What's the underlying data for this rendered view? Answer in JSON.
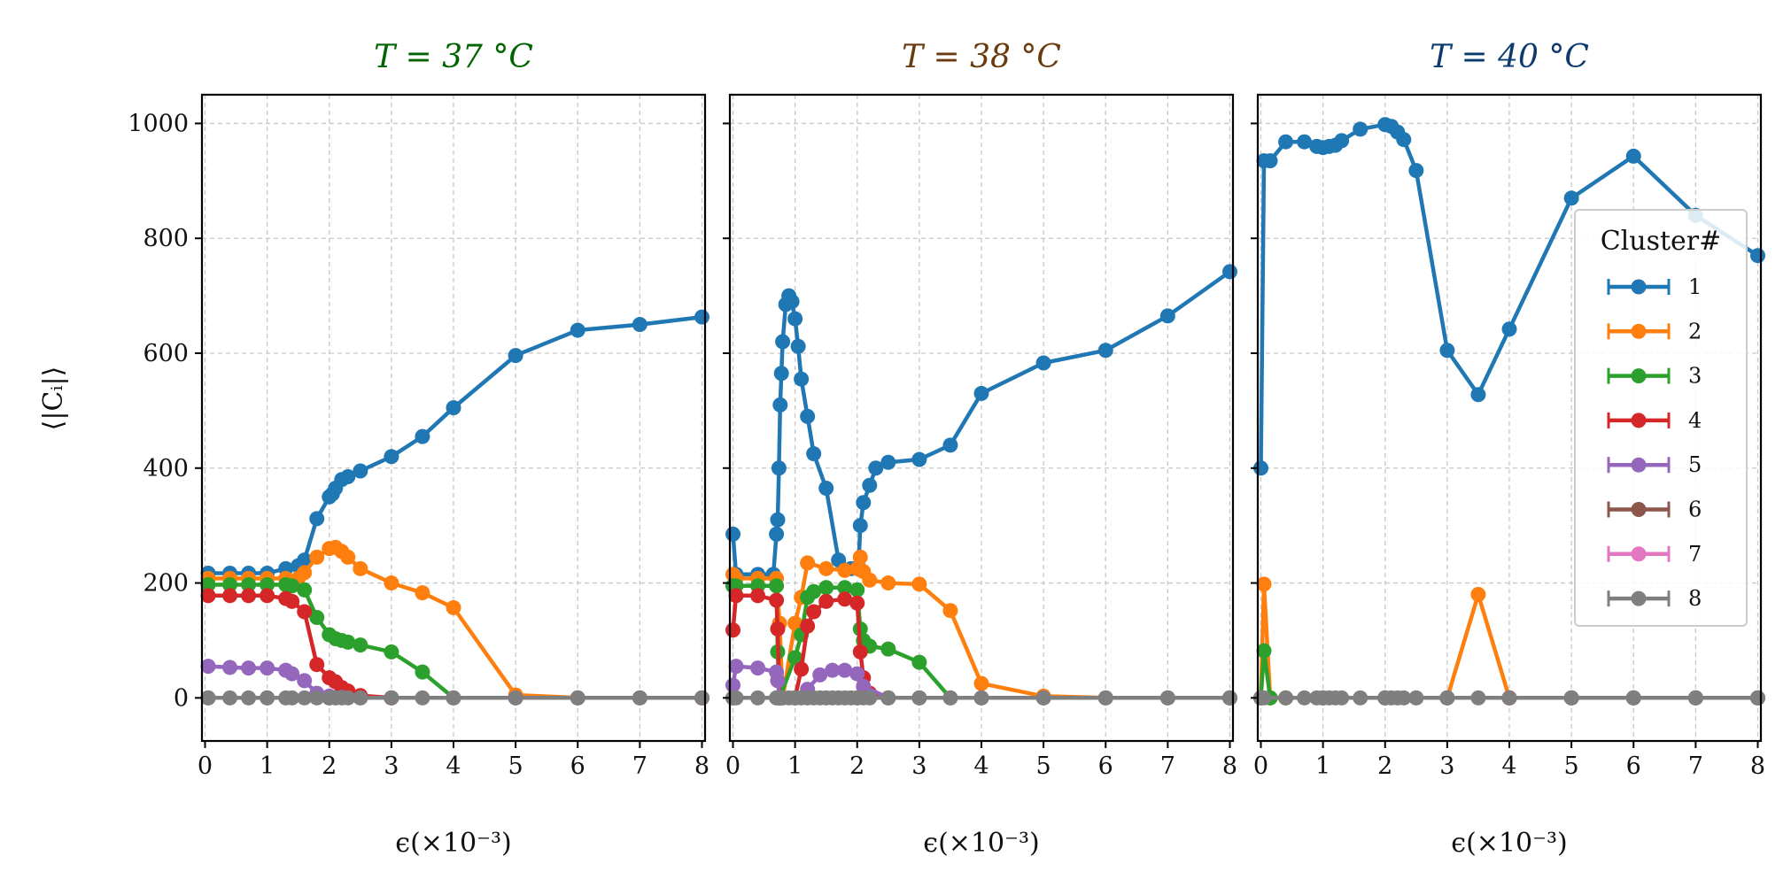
{
  "figure": {
    "ylabel": "⟨|Cᵢ|⟩",
    "xlabel": "ϵ(×10⁻³)"
  },
  "legend": {
    "title": "Cluster#",
    "entries": [
      "1",
      "2",
      "3",
      "4",
      "5",
      "6",
      "7",
      "8"
    ]
  },
  "colors": {
    "1": "#1f77b4",
    "2": "#ff7f0e",
    "3": "#2ca02c",
    "4": "#d62728",
    "5": "#9467bd",
    "6": "#8c564b",
    "7": "#e377c2",
    "8": "#7f7f7f"
  },
  "chart_data": [
    {
      "type": "line",
      "title": "T = 37 °C",
      "title_color": "#006400",
      "xlabel": "ϵ(×10⁻³)",
      "ylabel": "⟨|Cᵢ|⟩",
      "xlim": [
        -0.05,
        8.05
      ],
      "ylim": [
        -75,
        1050
      ],
      "xticks": [
        0,
        1,
        2,
        3,
        4,
        5,
        6,
        7,
        8
      ],
      "yticks": [
        0,
        200,
        400,
        600,
        800,
        1000
      ],
      "grid": true,
      "series": [
        {
          "name": "1",
          "x": [
            0.05,
            0.4,
            0.7,
            1.0,
            1.3,
            1.5,
            1.6,
            1.8,
            2.0,
            2.05,
            2.1,
            2.2,
            2.3,
            2.5,
            3.0,
            3.5,
            4.0,
            5.0,
            6.0,
            7.0,
            8.0
          ],
          "y": [
            217,
            217,
            217,
            217,
            225,
            230,
            240,
            312,
            350,
            355,
            365,
            380,
            385,
            395,
            420,
            455,
            505,
            596,
            640,
            650,
            663
          ]
        },
        {
          "name": "2",
          "x": [
            0.05,
            0.4,
            0.7,
            1.0,
            1.3,
            1.5,
            1.6,
            1.8,
            2.0,
            2.1,
            2.2,
            2.3,
            2.5,
            3.0,
            3.5,
            4.0,
            5.0,
            6.0,
            8.0
          ],
          "y": [
            208,
            208,
            208,
            208,
            208,
            208,
            218,
            245,
            260,
            262,
            255,
            245,
            225,
            200,
            183,
            157,
            5,
            0,
            0
          ]
        },
        {
          "name": "3",
          "x": [
            0.05,
            0.4,
            0.7,
            1.0,
            1.3,
            1.4,
            1.6,
            1.8,
            2.0,
            2.1,
            2.2,
            2.3,
            2.5,
            3.0,
            3.5,
            4.0,
            8.0
          ],
          "y": [
            197,
            197,
            197,
            197,
            197,
            195,
            188,
            140,
            110,
            103,
            100,
            97,
            92,
            80,
            45,
            0,
            0
          ]
        },
        {
          "name": "4",
          "x": [
            0.05,
            0.4,
            0.7,
            1.0,
            1.3,
            1.4,
            1.6,
            1.8,
            2.0,
            2.1,
            2.2,
            2.3,
            2.5,
            3.0,
            8.0
          ],
          "y": [
            178,
            178,
            178,
            178,
            173,
            168,
            150,
            58,
            35,
            28,
            18,
            12,
            4,
            0,
            0
          ]
        },
        {
          "name": "5",
          "x": [
            0.05,
            0.4,
            0.7,
            1.0,
            1.3,
            1.4,
            1.6,
            1.8,
            2.0,
            2.2,
            2.5,
            3.0,
            8.0
          ],
          "y": [
            55,
            53,
            52,
            52,
            48,
            42,
            30,
            8,
            3,
            1,
            0,
            0,
            0
          ]
        },
        {
          "name": "6",
          "x": [
            0.05,
            1.0,
            2.0,
            3.0,
            4.0,
            5.0,
            6.0,
            7.0,
            8.0
          ],
          "y": [
            0,
            0,
            0,
            0,
            0,
            0,
            0,
            0,
            0
          ]
        },
        {
          "name": "7",
          "x": [
            0.05,
            1.0,
            2.0,
            3.0,
            4.0,
            5.0,
            6.0,
            7.0,
            8.0
          ],
          "y": [
            0,
            0,
            0,
            0,
            0,
            0,
            0,
            0,
            0
          ]
        },
        {
          "name": "8",
          "x": [
            0.05,
            0.4,
            0.7,
            1.0,
            1.3,
            1.4,
            1.6,
            1.8,
            2.0,
            2.1,
            2.2,
            2.3,
            2.5,
            3.0,
            3.5,
            4.0,
            5.0,
            6.0,
            7.0,
            8.0
          ],
          "y": [
            0,
            0,
            0,
            0,
            0,
            0,
            0,
            0,
            0,
            0,
            0,
            0,
            0,
            0,
            0,
            0,
            0,
            0,
            0,
            0
          ]
        }
      ]
    },
    {
      "type": "line",
      "title": "T = 38 °C",
      "title_color": "#6b3a0c",
      "xlabel": "ϵ(×10⁻³)",
      "xlim": [
        -0.05,
        8.05
      ],
      "ylim": [
        -75,
        1050
      ],
      "xticks": [
        0,
        1,
        2,
        3,
        4,
        5,
        6,
        7,
        8
      ],
      "yticks": [
        0,
        200,
        400,
        600,
        800,
        1000
      ],
      "grid": true,
      "series": [
        {
          "name": "1",
          "x": [
            0.0,
            0.05,
            0.4,
            0.65,
            0.7,
            0.72,
            0.74,
            0.76,
            0.78,
            0.8,
            0.85,
            0.9,
            0.95,
            1.0,
            1.05,
            1.1,
            1.2,
            1.3,
            1.5,
            1.7,
            1.9,
            2.0,
            2.02,
            2.05,
            2.1,
            2.2,
            2.3,
            2.5,
            3.0,
            3.5,
            4.0,
            5.0,
            6.0,
            7.0,
            8.0
          ],
          "y": [
            285,
            215,
            215,
            215,
            285,
            310,
            400,
            510,
            565,
            620,
            685,
            700,
            690,
            660,
            612,
            555,
            490,
            425,
            365,
            240,
            225,
            225,
            228,
            300,
            340,
            370,
            400,
            410,
            415,
            440,
            530,
            583,
            605,
            665,
            742
          ]
        },
        {
          "name": "2",
          "x": [
            0.0,
            0.05,
            0.4,
            0.7,
            0.75,
            0.8,
            1.0,
            1.1,
            1.2,
            1.5,
            1.8,
            2.0,
            2.05,
            2.1,
            2.2,
            2.5,
            3.0,
            3.5,
            4.0,
            5.0,
            6.0,
            8.0
          ],
          "y": [
            215,
            208,
            208,
            208,
            130,
            0,
            130,
            175,
            235,
            225,
            222,
            225,
            245,
            220,
            205,
            200,
            198,
            152,
            25,
            3,
            0,
            0
          ]
        },
        {
          "name": "3",
          "x": [
            0.0,
            0.05,
            0.4,
            0.7,
            0.72,
            0.75,
            1.0,
            1.1,
            1.2,
            1.3,
            1.5,
            1.8,
            2.0,
            2.05,
            2.1,
            2.2,
            2.5,
            3.0,
            3.5,
            8.0
          ],
          "y": [
            195,
            195,
            195,
            195,
            80,
            0,
            70,
            110,
            175,
            185,
            192,
            192,
            188,
            120,
            100,
            90,
            85,
            62,
            0,
            0
          ]
        },
        {
          "name": "4",
          "x": [
            0.0,
            0.05,
            0.4,
            0.7,
            0.72,
            0.75,
            1.0,
            1.1,
            1.2,
            1.3,
            1.5,
            1.8,
            2.0,
            2.05,
            2.1,
            2.2,
            2.5,
            8.0
          ],
          "y": [
            118,
            178,
            178,
            170,
            120,
            0,
            0,
            50,
            125,
            150,
            168,
            172,
            165,
            80,
            35,
            8,
            0,
            0
          ]
        },
        {
          "name": "5",
          "x": [
            0.0,
            0.05,
            0.4,
            0.7,
            0.72,
            0.75,
            1.0,
            1.2,
            1.4,
            1.6,
            1.8,
            2.0,
            2.1,
            2.5,
            8.0
          ],
          "y": [
            22,
            55,
            52,
            45,
            30,
            0,
            0,
            15,
            40,
            48,
            48,
            42,
            20,
            0,
            0
          ]
        },
        {
          "name": "6",
          "x": [
            0.0,
            1.0,
            2.0,
            3.0,
            4.0,
            5.0,
            6.0,
            7.0,
            8.0
          ],
          "y": [
            0,
            0,
            0,
            0,
            0,
            0,
            0,
            0,
            0
          ]
        },
        {
          "name": "7",
          "x": [
            0.0,
            1.0,
            2.0,
            3.0,
            4.0,
            5.0,
            6.0,
            7.0,
            8.0
          ],
          "y": [
            0,
            0,
            0,
            0,
            0,
            0,
            0,
            0,
            0
          ]
        },
        {
          "name": "8",
          "x": [
            0.0,
            0.05,
            0.4,
            0.7,
            0.72,
            0.75,
            0.8,
            0.9,
            1.0,
            1.1,
            1.2,
            1.3,
            1.4,
            1.5,
            1.6,
            1.7,
            1.8,
            1.9,
            2.0,
            2.1,
            2.2,
            2.5,
            3.0,
            3.5,
            4.0,
            5.0,
            6.0,
            7.0,
            8.0
          ],
          "y": [
            0,
            0,
            0,
            0,
            0,
            0,
            0,
            0,
            0,
            0,
            0,
            0,
            0,
            0,
            0,
            0,
            0,
            0,
            0,
            0,
            0,
            0,
            0,
            0,
            0,
            0,
            0,
            0,
            0
          ]
        }
      ]
    },
    {
      "type": "line",
      "title": "T = 40 °C",
      "title_color": "#0b3a6e",
      "xlabel": "ϵ(×10⁻³)",
      "xlim": [
        -0.05,
        8.05
      ],
      "ylim": [
        -75,
        1050
      ],
      "xticks": [
        0,
        1,
        2,
        3,
        4,
        5,
        6,
        7,
        8
      ],
      "yticks": [
        0,
        200,
        400,
        600,
        800,
        1000
      ],
      "grid": true,
      "legend_position": "right",
      "series": [
        {
          "name": "1",
          "x": [
            0.0,
            0.05,
            0.15,
            0.4,
            0.7,
            0.9,
            1.0,
            1.1,
            1.2,
            1.3,
            1.6,
            2.0,
            2.1,
            2.2,
            2.3,
            2.5,
            3.0,
            3.5,
            4.0,
            5.0,
            6.0,
            7.0,
            8.0
          ],
          "y": [
            400,
            935,
            935,
            968,
            968,
            960,
            958,
            960,
            962,
            970,
            990,
            998,
            995,
            985,
            972,
            918,
            605,
            528,
            642,
            870,
            943,
            840,
            770
          ]
        },
        {
          "name": "2",
          "x": [
            0.0,
            0.05,
            0.15,
            0.4,
            1.0,
            2.0,
            2.5,
            3.0,
            3.5,
            4.0,
            5.0,
            6.0,
            7.0,
            8.0
          ],
          "y": [
            0,
            198,
            0,
            0,
            0,
            0,
            0,
            0,
            180,
            0,
            0,
            0,
            0,
            0
          ]
        },
        {
          "name": "3",
          "x": [
            0.0,
            0.05,
            0.15,
            0.4,
            1.0,
            2.0,
            3.0,
            4.0,
            5.0,
            6.0,
            7.0,
            8.0
          ],
          "y": [
            0,
            82,
            0,
            0,
            0,
            0,
            0,
            0,
            0,
            0,
            0,
            0
          ]
        },
        {
          "name": "4",
          "x": [
            0.0,
            1.0,
            2.0,
            3.0,
            4.0,
            5.0,
            6.0,
            7.0,
            8.0
          ],
          "y": [
            0,
            0,
            0,
            0,
            0,
            0,
            0,
            0,
            0
          ]
        },
        {
          "name": "5",
          "x": [
            0.0,
            1.0,
            2.0,
            3.0,
            4.0,
            5.0,
            6.0,
            7.0,
            8.0
          ],
          "y": [
            0,
            0,
            0,
            0,
            0,
            0,
            0,
            0,
            0
          ]
        },
        {
          "name": "6",
          "x": [
            0.0,
            1.0,
            2.0,
            3.0,
            4.0,
            5.0,
            6.0,
            7.0,
            8.0
          ],
          "y": [
            0,
            0,
            0,
            0,
            0,
            0,
            0,
            0,
            0
          ]
        },
        {
          "name": "7",
          "x": [
            0.0,
            1.0,
            2.0,
            3.0,
            4.0,
            5.0,
            6.0,
            7.0,
            8.0
          ],
          "y": [
            0,
            0,
            0,
            0,
            0,
            0,
            0,
            0,
            0
          ]
        },
        {
          "name": "8",
          "x": [
            0.0,
            0.05,
            0.4,
            0.7,
            0.9,
            1.0,
            1.1,
            1.2,
            1.3,
            1.6,
            2.0,
            2.1,
            2.2,
            2.3,
            2.5,
            3.0,
            3.5,
            4.0,
            5.0,
            6.0,
            7.0,
            8.0
          ],
          "y": [
            0,
            0,
            0,
            0,
            0,
            0,
            0,
            0,
            0,
            0,
            0,
            0,
            0,
            0,
            0,
            0,
            0,
            0,
            0,
            0,
            0,
            0
          ]
        }
      ]
    }
  ]
}
